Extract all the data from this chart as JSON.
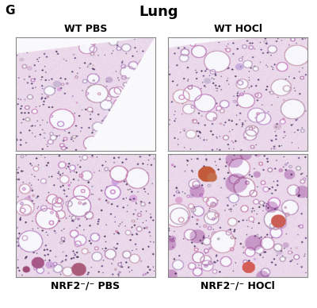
{
  "title": "Lung",
  "panel_label": "G",
  "top_labels": [
    "WT PBS",
    "WT HOCl"
  ],
  "bottom_labels": [
    "NRF2⁻/⁻ PBS",
    "NRF2⁻/⁻ HOCl"
  ],
  "background_color": "#ffffff",
  "title_fontsize": 13,
  "title_fontweight": "bold",
  "label_fontsize": 9,
  "label_fontweight": "bold",
  "panel_label_fontsize": 11,
  "panel_label_fontweight": "bold",
  "fig_width": 4.0,
  "fig_height": 3.88
}
